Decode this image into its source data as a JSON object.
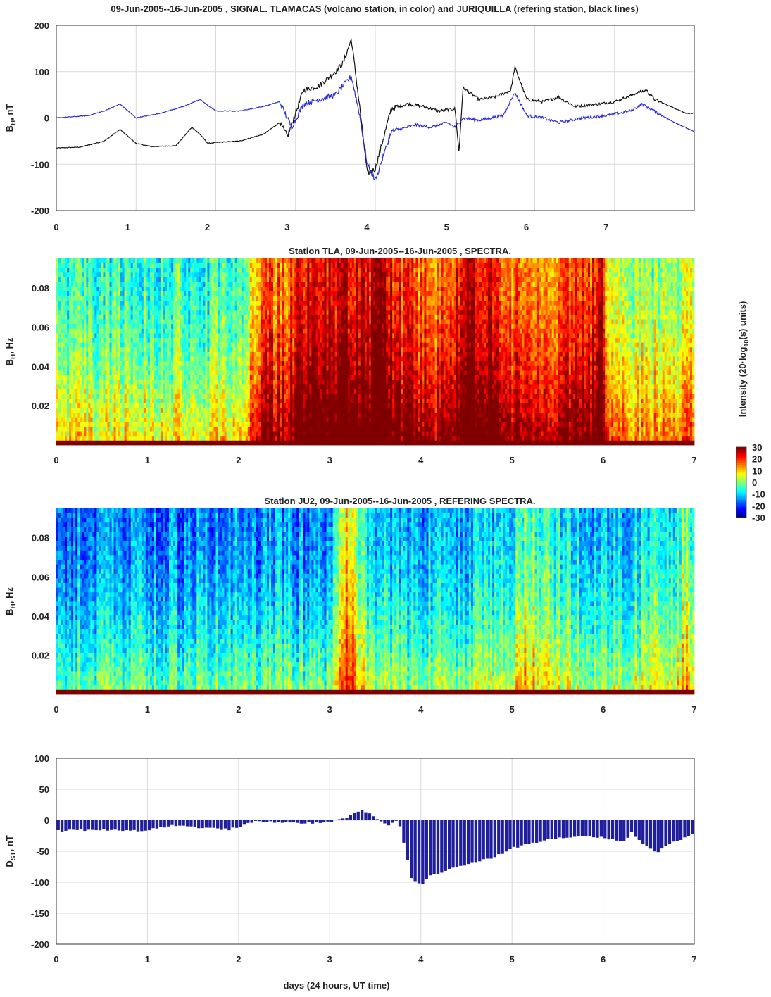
{
  "chart_data": [
    {
      "type": "line",
      "title": "09-Jun-2005--16-Jun-2005 , SIGNAL. TLAMACAS (volcano station, in color) and JURIQUILLA (refering station, black lines)",
      "ylabel": "B_H, nT",
      "xlim": [
        0,
        8
      ],
      "ylim": [
        -200,
        200
      ],
      "xticks": [
        "0",
        "1",
        "2",
        "3",
        "4",
        "5",
        "6",
        "7"
      ],
      "yticks": [
        "200",
        "100",
        "0",
        "-100",
        "-200"
      ],
      "grid": true,
      "colors": {
        "black_line": "#111111",
        "blue_line": "#2a2ad8"
      },
      "series": [
        {
          "name": "JURIQUILLA (black)",
          "x": [
            0,
            0.3,
            0.6,
            0.8,
            1.0,
            1.2,
            1.5,
            1.7,
            1.8,
            1.9,
            2.0,
            2.3,
            2.6,
            2.8,
            2.9,
            3.0,
            3.1,
            3.3,
            3.5,
            3.6,
            3.7,
            3.8,
            3.9,
            4.0,
            4.2,
            4.4,
            4.6,
            4.8,
            5.0,
            5.05,
            5.1,
            5.3,
            5.5,
            5.7,
            5.75,
            5.9,
            6.1,
            6.3,
            6.5,
            6.8,
            7.0,
            7.3,
            7.4,
            7.5,
            7.7,
            7.9,
            8.0
          ],
          "y": [
            -65,
            -63,
            -50,
            -25,
            -55,
            -62,
            -60,
            -20,
            -35,
            -55,
            -53,
            -50,
            -35,
            -10,
            -40,
            10,
            60,
            70,
            100,
            120,
            170,
            30,
            -120,
            -110,
            20,
            30,
            25,
            15,
            20,
            -75,
            65,
            40,
            45,
            60,
            110,
            40,
            35,
            45,
            25,
            30,
            35,
            55,
            60,
            40,
            25,
            10,
            10
          ]
        },
        {
          "name": "TLAMACAS (blue)",
          "x": [
            0,
            0.4,
            0.6,
            0.8,
            1.0,
            1.3,
            1.6,
            1.8,
            2.0,
            2.3,
            2.6,
            2.8,
            2.95,
            3.1,
            3.3,
            3.5,
            3.7,
            3.8,
            3.9,
            4.0,
            4.2,
            4.5,
            4.7,
            4.9,
            5.0,
            5.1,
            5.3,
            5.6,
            5.75,
            5.9,
            6.1,
            6.3,
            6.6,
            6.9,
            7.2,
            7.35,
            7.5,
            7.7,
            8.0
          ],
          "y": [
            0,
            5,
            15,
            30,
            0,
            10,
            25,
            40,
            15,
            15,
            25,
            35,
            -20,
            30,
            40,
            50,
            90,
            10,
            -100,
            -135,
            -30,
            -15,
            -20,
            -10,
            -20,
            0,
            -5,
            5,
            55,
            5,
            0,
            -10,
            0,
            5,
            15,
            30,
            15,
            -5,
            -30
          ]
        }
      ]
    },
    {
      "type": "heatmap",
      "title": "Station TLA, 09-Jun-2005--16-Jun-2005 , SPECTRA.",
      "ylabel": "B_H, Hz",
      "xlim": [
        0,
        7
      ],
      "ylim": [
        0,
        0.095
      ],
      "xticks": [
        "0",
        "1",
        "2",
        "3",
        "4",
        "5",
        "6",
        "7"
      ],
      "yticks": [
        "0.08",
        "0.06",
        "0.04",
        "0.02"
      ],
      "colorbar": {
        "label": "Intensity (20·log10(s) units)",
        "ticks": [
          "30",
          "20",
          "10",
          "0",
          "-10",
          "-20",
          "-30"
        ],
        "range": [
          -30,
          30
        ]
      },
      "intensity_profile_x": [
        0,
        0.5,
        1.0,
        1.5,
        2.0,
        2.3,
        2.5,
        2.7,
        3.0,
        3.3,
        3.5,
        3.8,
        4.0,
        4.3,
        4.5,
        4.8,
        5.0,
        5.5,
        6.0,
        6.05,
        6.5,
        7.0
      ],
      "intensity_profile_db": [
        -3,
        -3,
        -2,
        -2,
        -3,
        20,
        17,
        27,
        27,
        25,
        29,
        21,
        20,
        16,
        28,
        26,
        19,
        17,
        25,
        4,
        3,
        6
      ]
    },
    {
      "type": "heatmap",
      "title": "Station JU2, 09-Jun-2005--16-Jun-2005 , REFERING SPECTRA.",
      "ylabel": "B_H, Hz",
      "xlim": [
        0,
        7
      ],
      "ylim": [
        0,
        0.095
      ],
      "xticks": [
        "0",
        "1",
        "2",
        "3",
        "4",
        "5",
        "6",
        "7"
      ],
      "yticks": [
        "0.08",
        "0.06",
        "0.04",
        "0.02"
      ],
      "intensity_profile_x": [
        0,
        1,
        2,
        3.0,
        3.2,
        3.3,
        3.5,
        4.0,
        5.0,
        5.1,
        6.0,
        6.8,
        6.9,
        7.0
      ],
      "intensity_profile_db": [
        -13,
        -13,
        -12,
        -12,
        13,
        0,
        -8,
        -10,
        -8,
        2,
        -9,
        -4,
        3,
        -2
      ]
    },
    {
      "type": "bar",
      "ylabel": "D_ST, nT",
      "xlabel": "days (24 hours, UT time)",
      "xlim": [
        0,
        7
      ],
      "ylim": [
        -200,
        100
      ],
      "xticks": [
        "0",
        "1",
        "2",
        "3",
        "4",
        "5",
        "6",
        "7"
      ],
      "yticks": [
        "100",
        "50",
        "0",
        "-50",
        "-100",
        "-150",
        "-200"
      ],
      "grid": true,
      "bar_color": "#1f1f9e",
      "x": [
        0,
        0.5,
        1.0,
        1.1,
        1.3,
        1.6,
        1.9,
        2.0,
        2.2,
        2.5,
        2.9,
        3.0,
        3.2,
        3.35,
        3.5,
        3.65,
        3.75,
        3.8,
        3.85,
        3.9,
        4.0,
        4.1,
        4.4,
        4.8,
        5.0,
        5.4,
        5.8,
        6.0,
        6.25,
        6.3,
        6.5,
        6.6,
        6.7,
        6.9,
        7.0
      ],
      "values": [
        -17,
        -15,
        -17,
        -12,
        -8,
        -12,
        -15,
        -10,
        -2,
        -3,
        -5,
        -2,
        5,
        18,
        5,
        -10,
        3,
        -30,
        -60,
        -95,
        -105,
        -90,
        -75,
        -60,
        -45,
        -30,
        -25,
        -28,
        -35,
        -18,
        -45,
        -52,
        -40,
        -28,
        -20
      ]
    }
  ]
}
